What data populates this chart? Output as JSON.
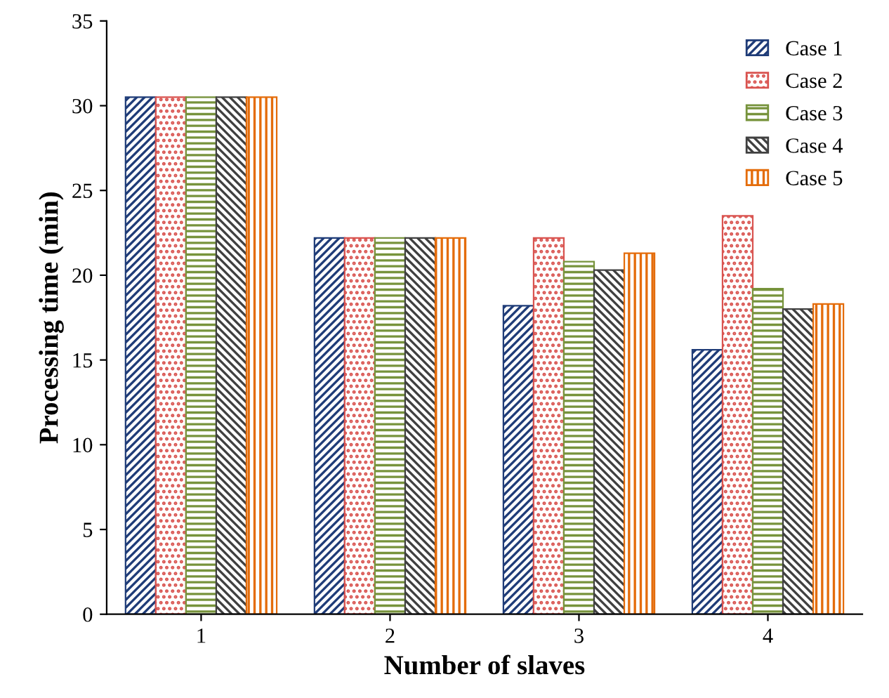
{
  "chart_data": {
    "type": "bar",
    "xlabel": "Number of slaves",
    "ylabel": "Processing time (min)",
    "categories": [
      "1",
      "2",
      "3",
      "4"
    ],
    "series": [
      {
        "name": "Case 1",
        "color": "#1f3c78",
        "values": [
          30.5,
          22.2,
          18.2,
          15.6
        ]
      },
      {
        "name": "Case 2",
        "color": "#d9534f",
        "values": [
          30.5,
          22.2,
          22.2,
          23.5
        ]
      },
      {
        "name": "Case 3",
        "color": "#77933c",
        "values": [
          30.5,
          22.2,
          20.8,
          19.2
        ]
      },
      {
        "name": "Case 4",
        "color": "#404040",
        "values": [
          30.5,
          22.2,
          20.3,
          18.0
        ]
      },
      {
        "name": "Case 5",
        "color": "#e46c0a",
        "values": [
          30.5,
          22.2,
          21.3,
          18.3
        ]
      }
    ],
    "ylim": [
      0,
      35
    ],
    "yticks": [
      0,
      5,
      10,
      15,
      20,
      25,
      30,
      35
    ],
    "grid": false,
    "legend": "top right"
  }
}
